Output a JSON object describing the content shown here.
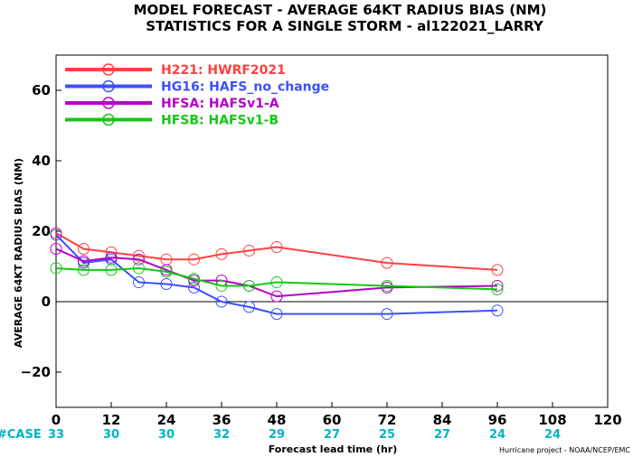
{
  "chart_data": {
    "type": "line",
    "title": "MODEL FORECAST - AVERAGE 64KT RADIUS BIAS (NM)",
    "subtitle": "STATISTICS FOR A SINGLE STORM - al122021_LARRY",
    "xlabel": "Forecast lead time (hr)",
    "ylabel": "AVERAGE 64KT RADIUS BIAS (NM)",
    "xlim": [
      0,
      120
    ],
    "ylim": [
      -30,
      70
    ],
    "x_ticks": [
      0,
      12,
      24,
      36,
      48,
      60,
      72,
      84,
      96,
      108,
      120
    ],
    "y_ticks": [
      -20,
      0,
      20,
      40,
      60
    ],
    "grid": false,
    "legend_position": "top-left",
    "case_label": "#CASE",
    "case_counts": [
      {
        "x": 0,
        "label": "33"
      },
      {
        "x": 12,
        "label": "30"
      },
      {
        "x": 24,
        "label": "30"
      },
      {
        "x": 36,
        "label": "32"
      },
      {
        "x": 48,
        "label": "29"
      },
      {
        "x": 60,
        "label": "27"
      },
      {
        "x": 72,
        "label": "25"
      },
      {
        "x": 84,
        "label": "27"
      },
      {
        "x": 96,
        "label": "24"
      },
      {
        "x": 108,
        "label": "24"
      }
    ],
    "credit": "Hurricane project - NOAA/NCEP/EMC",
    "series": [
      {
        "name": "H221: HWRF2021",
        "color": "#ff4040",
        "x": [
          0,
          6,
          12,
          18,
          24,
          30,
          36,
          42,
          48,
          72,
          96
        ],
        "y": [
          19.5,
          15,
          14,
          13,
          12,
          12,
          13.5,
          14.5,
          15.5,
          11,
          9
        ]
      },
      {
        "name": "HG16: HAFS_no_change",
        "color": "#3c50ff",
        "x": [
          0,
          6,
          12,
          18,
          24,
          30,
          36,
          42,
          48,
          72,
          96
        ],
        "y": [
          19,
          11,
          12,
          5.5,
          5,
          4,
          0,
          -1.5,
          -3.5,
          -3.5,
          -2.5
        ]
      },
      {
        "name": "HFSA: HAFSv1-A",
        "color": "#b400c8",
        "x": [
          0,
          6,
          12,
          18,
          24,
          30,
          36,
          42,
          48,
          72,
          96
        ],
        "y": [
          15,
          11.5,
          12.5,
          12,
          9,
          6,
          6,
          4.5,
          1.5,
          4,
          4.5
        ]
      },
      {
        "name": "HFSB: HAFSv1-B",
        "color": "#14c814",
        "x": [
          0,
          6,
          12,
          18,
          24,
          30,
          36,
          42,
          48,
          72,
          96
        ],
        "y": [
          9.5,
          9,
          9,
          9.5,
          8.5,
          6.5,
          4.5,
          4.5,
          5.5,
          4.5,
          3.5
        ]
      }
    ]
  }
}
